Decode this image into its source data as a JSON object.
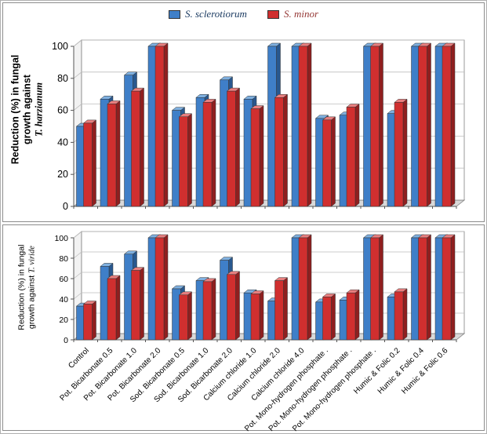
{
  "figure": {
    "legend": [
      {
        "label": "S. sclerotiorum",
        "text_color": "#17375e",
        "color": "#3f7fc8"
      },
      {
        "label": "S. minor",
        "text_color": "#953735",
        "color": "#d02f2f"
      }
    ],
    "border_color": "#8c8c8c"
  },
  "chart_data": [
    {
      "type": "bar",
      "title": "",
      "xlabel": "",
      "ylabel": "Reduction (%) in fungal growth against T. harzianum",
      "ylabel_lines": [
        "Reduction (%) in fungal",
        "growth against"
      ],
      "species": "T. harzianum",
      "ylim": [
        0,
        100
      ],
      "yticks": [
        0,
        20,
        40,
        60,
        80,
        100
      ],
      "grid": true,
      "legend_position": "top",
      "show_x_labels": false,
      "categories": [
        "Control",
        "Pot. Bicarbonate 0.5",
        "Pot. Bicarbonate 1.0",
        "Pot. Bicarbonate 2.0",
        "Sod. Bicarbonate 0.5",
        "Sod. Bicarbonate 1.0",
        "Sod. Bicarbonate 2.0",
        "Calcium chloride 1.0",
        "Calcium chloride 2.0",
        "Calcium chloride 4.0",
        "Pot. Mono-hydrogen phosphate .",
        "Pot. Mono-hydrogen phosphate .",
        "Pot. Mono-hydrogen phosphate .",
        "Humic & Folic 0.2",
        "Humic & Folic 0.4",
        "Humic & Folic 0.6"
      ],
      "series": [
        {
          "name": "S. sclerotiorum",
          "colors": {
            "front": "#3f7fc8",
            "top": "#7fb0e0",
            "side": "#28588f"
          },
          "values": [
            50,
            67,
            82,
            100,
            60,
            68,
            79,
            67,
            100,
            100,
            55,
            57,
            100,
            58,
            100,
            100
          ]
        },
        {
          "name": "S. minor",
          "colors": {
            "front": "#d02f2f",
            "top": "#e87f7f",
            "side": "#8f1f1f"
          },
          "values": [
            52,
            64,
            72,
            100,
            56,
            65,
            72,
            61,
            68,
            100,
            54,
            62,
            100,
            65,
            100,
            100
          ]
        }
      ]
    },
    {
      "type": "bar",
      "title": "",
      "xlabel": "",
      "ylabel": "Reduction (%) in fungal growth against T. viride",
      "ylabel_lines": [
        "Reduction (%) in fungal",
        "growth against"
      ],
      "species": "T. viride",
      "ylim": [
        0,
        100
      ],
      "yticks": [
        0,
        20,
        40,
        60,
        80,
        100
      ],
      "grid": true,
      "legend_position": "none",
      "show_x_labels": true,
      "categories": [
        "Control",
        "Pot. Bicarbonate 0.5",
        "Pot. Bicarbonate 1.0",
        "Pot. Bicarbonate 2.0",
        "Sod. Bicarbonate 0.5",
        "Sod. Bicarbonate 1.0",
        "Sod. Bicarbonate 2.0",
        "Calcium chloride 1.0",
        "Calcium chloride 2.0",
        "Calcium chloride 4.0",
        "Pot. Mono-hydrogen phosphate .",
        "Pot. Mono-hydrogen phosphate .",
        "Pot. Mono-hydrogen phosphate .",
        "Humic & Folic 0.2",
        "Humic & Folic 0.4",
        "Humic & Folic 0.6"
      ],
      "series": [
        {
          "name": "S. sclerotiorum",
          "colors": {
            "front": "#3f7fc8",
            "top": "#7fb0e0",
            "side": "#28588f"
          },
          "values": [
            33,
            72,
            84,
            100,
            50,
            58,
            78,
            46,
            38,
            100,
            37,
            39,
            100,
            42,
            100,
            100
          ]
        },
        {
          "name": "S. minor",
          "colors": {
            "front": "#d02f2f",
            "top": "#e87f7f",
            "side": "#8f1f1f"
          },
          "values": [
            35,
            60,
            68,
            100,
            44,
            57,
            64,
            45,
            58,
            100,
            42,
            46,
            100,
            47,
            100,
            100
          ]
        }
      ]
    }
  ]
}
